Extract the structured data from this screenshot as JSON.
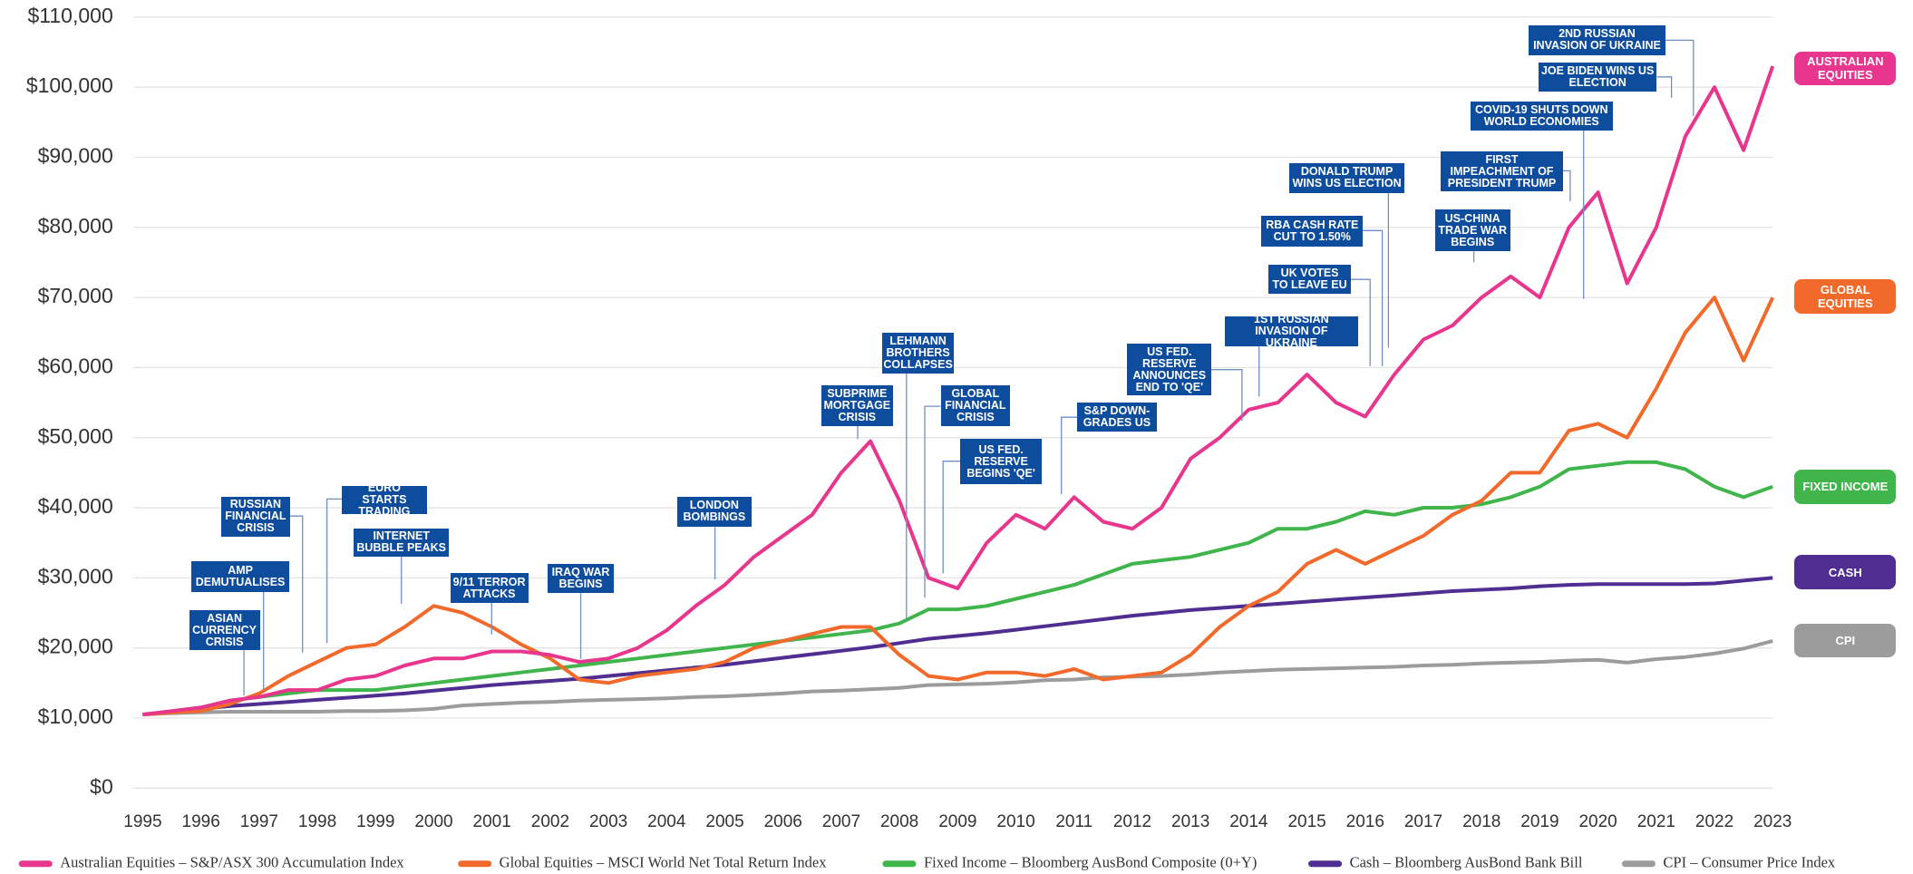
{
  "chart_data": {
    "type": "line",
    "x": [
      1995,
      1995.5,
      1996,
      1996.5,
      1997,
      1997.5,
      1998,
      1998.5,
      1999,
      1999.5,
      2000,
      2000.5,
      2001,
      2001.5,
      2002,
      2002.5,
      2003,
      2003.5,
      2004,
      2004.5,
      2005,
      2005.5,
      2006,
      2006.5,
      2007,
      2007.5,
      2008,
      2008.5,
      2009,
      2009.5,
      2010,
      2010.5,
      2011,
      2011.5,
      2012,
      2012.5,
      2013,
      2013.5,
      2014,
      2014.5,
      2015,
      2015.5,
      2016,
      2016.5,
      2017,
      2017.5,
      2018,
      2018.5,
      2019,
      2019.5,
      2020,
      2020.5,
      2021,
      2021.5,
      2022,
      2022.5,
      2023
    ],
    "xlim": [
      1995,
      2023
    ],
    "xticks": [
      1995,
      1996,
      1997,
      1998,
      1999,
      2000,
      2001,
      2002,
      2003,
      2004,
      2005,
      2006,
      2007,
      2008,
      2009,
      2010,
      2011,
      2012,
      2013,
      2014,
      2015,
      2016,
      2017,
      2018,
      2019,
      2020,
      2021,
      2022,
      2023
    ],
    "ylim": [
      0,
      110000
    ],
    "yticks": [
      {
        "value": 0,
        "label": "$0"
      },
      {
        "value": 10000,
        "label": "$10,000"
      },
      {
        "value": 20000,
        "label": "$20,000"
      },
      {
        "value": 30000,
        "label": "$30,000"
      },
      {
        "value": 40000,
        "label": "$40,000"
      },
      {
        "value": 50000,
        "label": "$50,000"
      },
      {
        "value": 60000,
        "label": "$60,000"
      },
      {
        "value": 70000,
        "label": "$70,000"
      },
      {
        "value": 80000,
        "label": "$80,000"
      },
      {
        "value": 90000,
        "label": "$90,000"
      },
      {
        "value": 100000,
        "label": "$100,000"
      },
      {
        "value": 110000,
        "label": "$110,000"
      }
    ],
    "grid": true,
    "series": [
      {
        "name": "Australian Equities – S&P/ASX 300 Accumulation Index",
        "end_label": "Australian Equities",
        "color": "#e8358e",
        "values": [
          10500,
          11000,
          11500,
          12500,
          13000,
          14000,
          14000,
          15500,
          16000,
          17500,
          18500,
          18500,
          19500,
          19500,
          19000,
          18000,
          18500,
          20000,
          22500,
          26000,
          29000,
          33000,
          36000,
          39000,
          45000,
          49500,
          41000,
          30000,
          28500,
          35000,
          39000,
          37000,
          41500,
          38000,
          37000,
          40000,
          47000,
          50000,
          54000,
          55000,
          59000,
          55000,
          53000,
          59000,
          64000,
          66000,
          70000,
          73000,
          70000,
          80000,
          85000,
          72000,
          80000,
          93000,
          100000,
          91000,
          103000
        ]
      },
      {
        "name": "Global Equities – MSCI World Net Total Return Index",
        "end_label": "Global Equities",
        "color": "#f26a2b",
        "values": [
          10500,
          10800,
          11000,
          12000,
          13500,
          16000,
          18000,
          20000,
          20500,
          23000,
          26000,
          25000,
          23000,
          20500,
          18500,
          15500,
          15000,
          16000,
          16500,
          17000,
          18000,
          20000,
          21000,
          22000,
          23000,
          23000,
          19000,
          16000,
          15500,
          16500,
          16500,
          16000,
          17000,
          15500,
          16000,
          16500,
          19000,
          23000,
          26000,
          28000,
          32000,
          34000,
          32000,
          34000,
          36000,
          39000,
          41000,
          45000,
          45000,
          51000,
          52000,
          50000,
          57000,
          65000,
          70000,
          61000,
          70000
        ]
      },
      {
        "name": "Fixed Income – Bloomberg AusBond Composite (0+Y)",
        "end_label": "Fixed Income",
        "color": "#3fb54b",
        "values": [
          10500,
          11000,
          11500,
          12500,
          13000,
          13500,
          14000,
          14000,
          14000,
          14500,
          15000,
          15500,
          16000,
          16500,
          17000,
          17500,
          18000,
          18500,
          19000,
          19500,
          20000,
          20500,
          21000,
          21500,
          22000,
          22500,
          23500,
          25500,
          25500,
          26000,
          27000,
          28000,
          29000,
          30500,
          32000,
          32500,
          33000,
          34000,
          35000,
          37000,
          37000,
          38000,
          39500,
          39000,
          40000,
          40000,
          40500,
          41500,
          43000,
          45500,
          46000,
          46500,
          46500,
          45500,
          43000,
          41500,
          43000
        ]
      },
      {
        "name": "Cash – Bloomberg AusBond Bank Bill",
        "end_label": "Cash",
        "color": "#4f2d91",
        "values": [
          10500,
          10900,
          11300,
          11700,
          12000,
          12300,
          12600,
          12900,
          13200,
          13500,
          13900,
          14300,
          14700,
          15000,
          15300,
          15600,
          16000,
          16400,
          16800,
          17200,
          17600,
          18100,
          18600,
          19100,
          19600,
          20100,
          20700,
          21300,
          21700,
          22100,
          22600,
          23100,
          23600,
          24100,
          24600,
          25000,
          25400,
          25700,
          26000,
          26300,
          26600,
          26900,
          27200,
          27500,
          27800,
          28100,
          28300,
          28500,
          28800,
          29000,
          29100,
          29100,
          29100,
          29100,
          29200,
          29600,
          30000
        ]
      },
      {
        "name": "CPI – Consumer Price Index",
        "end_label": "CPI",
        "color": "#9c9c9c",
        "values": [
          10500,
          10700,
          10800,
          10900,
          10900,
          10900,
          10900,
          11000,
          11000,
          11100,
          11300,
          11800,
          12000,
          12200,
          12300,
          12500,
          12600,
          12700,
          12800,
          13000,
          13100,
          13300,
          13500,
          13800,
          13900,
          14100,
          14300,
          14700,
          14800,
          14900,
          15100,
          15400,
          15500,
          15800,
          15900,
          16000,
          16200,
          16500,
          16700,
          16900,
          17000,
          17100,
          17200,
          17300,
          17500,
          17600,
          17800,
          17900,
          18000,
          18200,
          18300,
          17900,
          18400,
          18700,
          19200,
          19900,
          21000
        ]
      }
    ],
    "annotations": [
      "Asian currency crisis",
      "AMP demutualises",
      "Russian financial crisis",
      "Euro starts trading",
      "Internet bubble peaks",
      "9/11 terror attacks",
      "Iraq war begins",
      "London bombings",
      "Subprime mortgage crisis",
      "Lehmann brothers collapses",
      "Global financial crisis",
      "US Fed. reserve begins 'QE'",
      "S&P down-grades US",
      "US Fed. reserve announces end to 'QE'",
      "1st Russian invasion of Ukraine",
      "UK votes to leave EU",
      "RBA cash rate cut to 1.50%",
      "Donald Trump wins US election",
      "US-China trade war begins",
      "First impeachment of President Trump",
      "COVID-19 shuts down world economies",
      "Joe Biden wins US election",
      "2nd Russian invasion of Ukraine"
    ]
  }
}
